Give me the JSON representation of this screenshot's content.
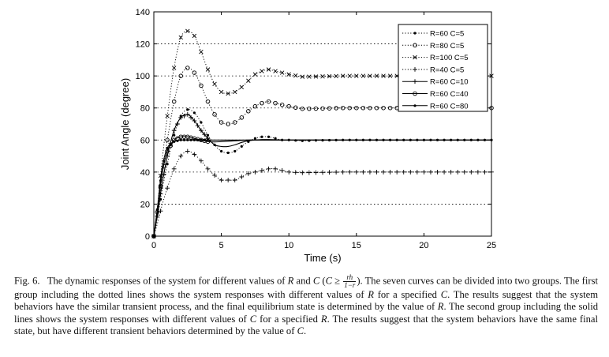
{
  "chart_data": {
    "type": "line",
    "title": "",
    "xlabel": "Time (s)",
    "ylabel": "Joint Angle (degree)",
    "xlim": [
      0,
      25
    ],
    "ylim": [
      0,
      140
    ],
    "xticks": [
      0,
      5,
      10,
      15,
      20,
      25
    ],
    "yticks": [
      0,
      20,
      40,
      60,
      80,
      100,
      120,
      140
    ],
    "grid": "horizontal dotted",
    "legend_position": "top-right",
    "series": [
      {
        "name": "R=60 C=5",
        "group": "dotted",
        "marker": "dot",
        "final": 60,
        "x": [
          0,
          0.3,
          0.6,
          1,
          1.5,
          2,
          2.5,
          3,
          3.5,
          4,
          4.5,
          5,
          5.5,
          6,
          6.5,
          7,
          7.5,
          8,
          8.5,
          9,
          9.5,
          10,
          11,
          12,
          14,
          16,
          18,
          20,
          22,
          25
        ],
        "y": [
          0,
          13,
          28,
          45,
          63,
          75,
          79,
          77,
          71,
          63,
          57,
          53,
          52,
          53,
          56,
          59,
          61,
          62,
          62,
          61,
          60,
          60,
          59.5,
          59.8,
          60,
          60,
          60,
          60,
          60,
          60
        ]
      },
      {
        "name": "R=80 C=5",
        "group": "dotted",
        "marker": "circle",
        "final": 80,
        "x": [
          0,
          0.3,
          0.6,
          1,
          1.5,
          2,
          2.5,
          3,
          3.5,
          4,
          4.5,
          5,
          5.5,
          6,
          6.5,
          7,
          7.5,
          8,
          8.5,
          9,
          9.5,
          10,
          11,
          12,
          14,
          16,
          18,
          20,
          22,
          25
        ],
        "y": [
          0,
          17,
          37,
          60,
          84,
          100,
          105,
          102,
          94,
          84,
          76,
          71,
          70,
          71,
          74,
          78,
          81,
          83,
          84,
          83,
          82,
          81,
          79.5,
          79.6,
          80,
          80,
          80,
          80,
          80,
          80
        ]
      },
      {
        "name": "R=100 C=5",
        "group": "dotted",
        "marker": "x",
        "final": 100,
        "x": [
          0,
          0.3,
          0.6,
          1,
          1.5,
          2,
          2.5,
          3,
          3.5,
          4,
          4.5,
          5,
          5.5,
          6,
          6.5,
          7,
          7.5,
          8,
          8.5,
          9,
          9.5,
          10,
          11,
          12,
          14,
          16,
          18,
          20,
          22,
          25
        ],
        "y": [
          0,
          21,
          46,
          75,
          105,
          124,
          128,
          125,
          115,
          104,
          95,
          90,
          89,
          90,
          93,
          97,
          101,
          103,
          104,
          103,
          102,
          101,
          99.5,
          99.6,
          100,
          100,
          100,
          100,
          100,
          100
        ]
      },
      {
        "name": "R=40 C=5",
        "group": "dotted",
        "marker": "plus",
        "final": 40,
        "x": [
          0,
          0.3,
          0.6,
          1,
          1.5,
          2,
          2.5,
          3,
          3.5,
          4,
          4.5,
          5,
          5.5,
          6,
          6.5,
          7,
          7.5,
          8,
          8.5,
          9,
          9.5,
          10,
          11,
          12,
          14,
          16,
          18,
          20,
          22,
          25
        ],
        "y": [
          0,
          9,
          19,
          30,
          42,
          50,
          53,
          51,
          47,
          42,
          38,
          35,
          35,
          35,
          37,
          39,
          40,
          41,
          42,
          42,
          41,
          40,
          39.6,
          39.7,
          40,
          40,
          40,
          40,
          40,
          40
        ]
      },
      {
        "name": "R=60 C=10",
        "group": "solid",
        "marker": "plus",
        "final": 60,
        "x": [
          0,
          0.3,
          0.6,
          1,
          1.5,
          2,
          2.5,
          3,
          3.5,
          4,
          4.5,
          5,
          5.5,
          6,
          6.5,
          7,
          7.5,
          8,
          8.5,
          9,
          10,
          12,
          15,
          20,
          25
        ],
        "y": [
          0,
          15,
          32,
          50,
          66,
          74,
          76,
          72,
          66,
          61,
          57,
          56,
          56,
          57,
          58.5,
          59.5,
          60,
          60.3,
          60.3,
          60.2,
          60,
          60,
          60,
          60,
          60
        ]
      },
      {
        "name": "R=60 C=40",
        "group": "solid",
        "marker": "circle",
        "final": 60,
        "x": [
          0,
          0.3,
          0.6,
          1,
          1.5,
          2,
          2.5,
          3,
          3.5,
          4,
          4.5,
          5,
          6,
          7,
          8,
          10,
          15,
          20,
          25
        ],
        "y": [
          0,
          18,
          38,
          53,
          60,
          62,
          62,
          61,
          60,
          59,
          58.8,
          59,
          59.5,
          60,
          60,
          60,
          60,
          60,
          60
        ]
      },
      {
        "name": "R=60 C=80",
        "group": "solid",
        "marker": "dot",
        "final": 60,
        "x": [
          0,
          0.3,
          0.6,
          1,
          1.5,
          2,
          2.5,
          3,
          4,
          5,
          6,
          8,
          10,
          15,
          20,
          25
        ],
        "y": [
          0,
          20,
          42,
          55,
          59,
          60,
          60,
          60,
          60,
          60,
          60,
          60,
          60,
          60,
          60,
          60
        ]
      }
    ]
  },
  "caption": {
    "fig_label": "Fig. 6.",
    "part1": "The dynamic responses of the system for different values of",
    "R": "R",
    "and": "and",
    "C": "C",
    "cond_open": "(",
    "cond_ge": "≥",
    "frac_num": "rh",
    "frac_den": "1−r",
    "cond_close": ").",
    "part2": "The seven curves can be divided into two groups. The first group including the dotted lines shows the system responses with different values of",
    "part3": "for a specified",
    "part4": ". The results suggest that the system behaviors have the similar transient process, and the final equilibrium state is determined by the value of",
    "part5": ". The second group including the solid lines shows the system responses with different values of",
    "part6": "for a specified",
    "part7": ". The results suggest that the system behaviors have the same final state, but have different transient behaviors determined by the value of",
    "end": "."
  }
}
